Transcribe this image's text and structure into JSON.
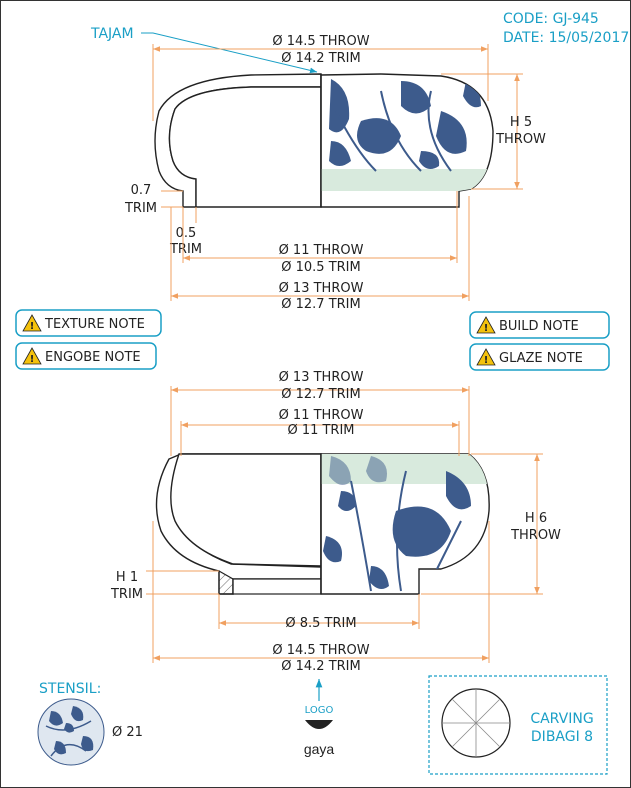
{
  "header": {
    "code": "CODE: GJ-945",
    "date": "DATE: 15/05/2017"
  },
  "colors": {
    "accent": "#1a9fc6",
    "dimension_line": "#f0a060",
    "pattern": "#3d5b8c",
    "glaze_band": "#d8eadd",
    "warning": "#f4c20d"
  },
  "top_view": {
    "tajam_label": "TAJAM",
    "dia_top_throw": "Ø 14.5 THROW",
    "dia_top_trim": "Ø 14.2 TRIM",
    "height_value": "H 5",
    "height_unit": "THROW",
    "lip_value": "0.7",
    "lip_unit": "TRIM",
    "foot_value": "0.5",
    "foot_unit": "TRIM",
    "dia_inner_throw": "Ø 11 THROW",
    "dia_inner_trim": "Ø 10.5 TRIM",
    "dia_base_throw": "Ø 13 THROW",
    "dia_base_trim": "Ø 12.7 TRIM"
  },
  "notes": {
    "texture": "TEXTURE NOTE",
    "engobe": "ENGOBE NOTE",
    "build": "BUILD NOTE",
    "glaze": "GLAZE NOTE",
    "icon": "warning-icon"
  },
  "bottom_view": {
    "dia_top_throw": "Ø 13 THROW",
    "dia_top_trim": "Ø 12.7 TRIM",
    "dia_inner_throw": "Ø 11 THROW",
    "dia_inner_trim": "Ø 11 TRIM",
    "height_value": "H 6",
    "height_unit": "THROW",
    "foot_value": "H 1",
    "foot_unit": "TRIM",
    "dia_foot": "Ø 8.5 TRIM",
    "dia_max_throw": "Ø 14.5 THROW",
    "dia_max_trim": "Ø 14.2 TRIM"
  },
  "footer": {
    "stensil_label": "STENSIL:",
    "stensil_size": "Ø 21",
    "logo_label": "LOGO",
    "brand": "gaya",
    "carving_line1": "CARVING",
    "carving_line2": "DIBAGI 8"
  }
}
